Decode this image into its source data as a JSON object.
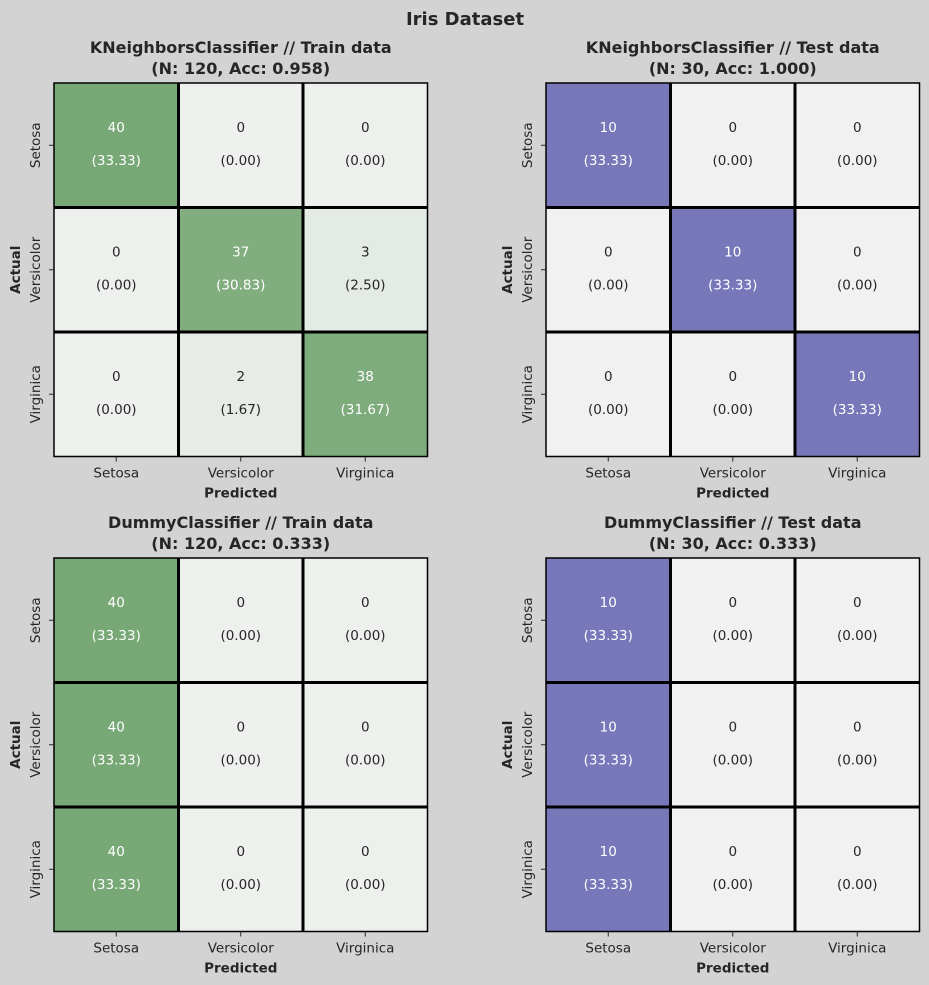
{
  "figure_title": "Iris Dataset",
  "chart_data": [
    {
      "type": "heatmap",
      "title_line1": "KNeighborsClassifier // Train data",
      "title_line2": "(N: 120, Acc: 0.958)",
      "xlabel": "Predicted",
      "ylabel": "Actual",
      "x_categories": [
        "Setosa",
        "Versicolor",
        "Virginica"
      ],
      "y_categories": [
        "Setosa",
        "Versicolor",
        "Virginica"
      ],
      "counts": [
        [
          40,
          0,
          0
        ],
        [
          0,
          37,
          3
        ],
        [
          0,
          2,
          38
        ]
      ],
      "percents": [
        [
          "(33.33)",
          "(0.00)",
          "(0.00)"
        ],
        [
          "(0.00)",
          "(30.83)",
          "(2.50)"
        ],
        [
          "(0.00)",
          "(1.67)",
          "(31.67)"
        ]
      ],
      "colormap": "green",
      "max_color": "#78a876",
      "min_color": "#edf0ed"
    },
    {
      "type": "heatmap",
      "title_line1": "KNeighborsClassifier // Test data",
      "title_line2": "(N: 30, Acc: 1.000)",
      "xlabel": "Predicted",
      "ylabel": "Actual",
      "x_categories": [
        "Setosa",
        "Versicolor",
        "Virginica"
      ],
      "y_categories": [
        "Setosa",
        "Versicolor",
        "Virginica"
      ],
      "counts": [
        [
          10,
          0,
          0
        ],
        [
          0,
          10,
          0
        ],
        [
          0,
          0,
          10
        ]
      ],
      "percents": [
        [
          "(33.33)",
          "(0.00)",
          "(0.00)"
        ],
        [
          "(0.00)",
          "(33.33)",
          "(0.00)"
        ],
        [
          "(0.00)",
          "(0.00)",
          "(33.33)"
        ]
      ],
      "colormap": "purple",
      "max_color": "#7777b9",
      "min_color": "#f1f1f1"
    },
    {
      "type": "heatmap",
      "title_line1": "DummyClassifier // Train data",
      "title_line2": "(N: 120, Acc: 0.333)",
      "xlabel": "Predicted",
      "ylabel": "Actual",
      "x_categories": [
        "Setosa",
        "Versicolor",
        "Virginica"
      ],
      "y_categories": [
        "Setosa",
        "Versicolor",
        "Virginica"
      ],
      "counts": [
        [
          40,
          0,
          0
        ],
        [
          40,
          0,
          0
        ],
        [
          40,
          0,
          0
        ]
      ],
      "percents": [
        [
          "(33.33)",
          "(0.00)",
          "(0.00)"
        ],
        [
          "(33.33)",
          "(0.00)",
          "(0.00)"
        ],
        [
          "(33.33)",
          "(0.00)",
          "(0.00)"
        ]
      ],
      "colormap": "green",
      "max_color": "#78a876",
      "min_color": "#edf0ed"
    },
    {
      "type": "heatmap",
      "title_line1": "DummyClassifier // Test data",
      "title_line2": "(N: 30, Acc: 0.333)",
      "xlabel": "Predicted",
      "ylabel": "Actual",
      "x_categories": [
        "Setosa",
        "Versicolor",
        "Virginica"
      ],
      "y_categories": [
        "Setosa",
        "Versicolor",
        "Virginica"
      ],
      "counts": [
        [
          10,
          0,
          0
        ],
        [
          10,
          0,
          0
        ],
        [
          10,
          0,
          0
        ]
      ],
      "percents": [
        [
          "(33.33)",
          "(0.00)",
          "(0.00)"
        ],
        [
          "(33.33)",
          "(0.00)",
          "(0.00)"
        ],
        [
          "(33.33)",
          "(0.00)",
          "(0.00)"
        ]
      ],
      "colormap": "purple",
      "max_color": "#7777b9",
      "min_color": "#f1f1f1"
    }
  ]
}
